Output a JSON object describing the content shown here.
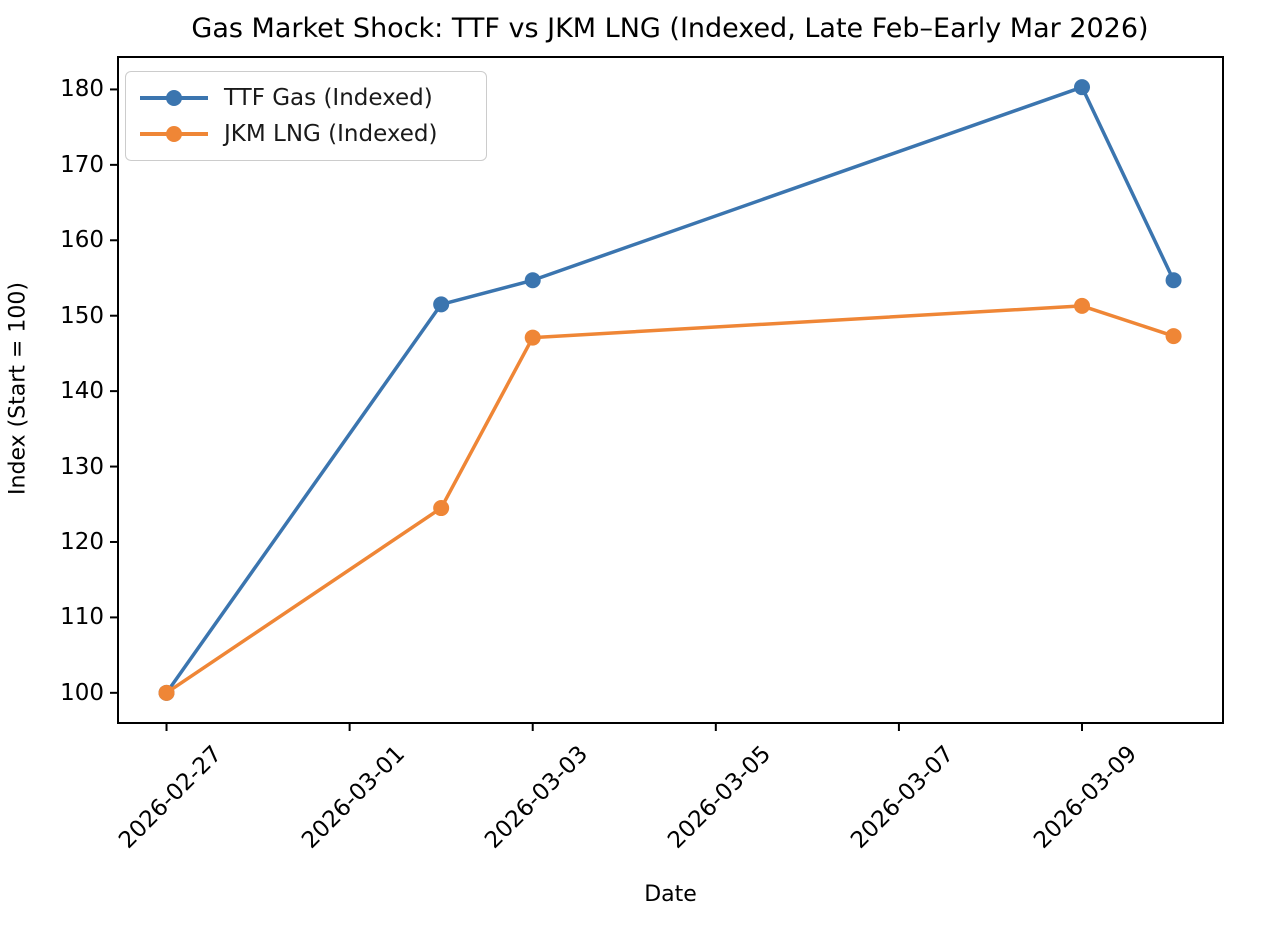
{
  "figure": {
    "background_color": "#ffffff"
  },
  "chart_data": {
    "type": "line",
    "title": "Gas Market Shock: TTF vs JKM LNG (Indexed, Late Feb–Early Mar 2026)",
    "xlabel": "Date",
    "ylabel": "Index (Start = 100)",
    "x": [
      "2026-02-27",
      "2026-03-02",
      "2026-03-03",
      "2026-03-09",
      "2026-03-10"
    ],
    "series": [
      {
        "name": "TTF Gas (Indexed)",
        "color": "#3b75af",
        "marker": "circle",
        "values": [
          100.0,
          151.5,
          154.7,
          180.3,
          154.7
        ]
      },
      {
        "name": "JKM LNG (Indexed)",
        "color": "#ef8636",
        "marker": "circle",
        "values": [
          100.0,
          124.5,
          147.1,
          151.3,
          147.3
        ]
      }
    ],
    "x_tick_labels": [
      "2026-02-27",
      "2026-03-01",
      "2026-03-03",
      "2026-03-05",
      "2026-03-07",
      "2026-03-09"
    ],
    "y_tick_labels": [
      "100",
      "110",
      "120",
      "130",
      "140",
      "150",
      "160",
      "170",
      "180"
    ],
    "y_ticks": [
      100,
      110,
      120,
      130,
      140,
      150,
      160,
      170,
      180
    ],
    "ylim": [
      96.0,
      184.3
    ],
    "xlim_days_offset": [
      -0.53,
      11.54
    ],
    "grid": false,
    "legend_position": "upper left",
    "axis_color": "#000000",
    "tick_label_color": "#000000"
  }
}
